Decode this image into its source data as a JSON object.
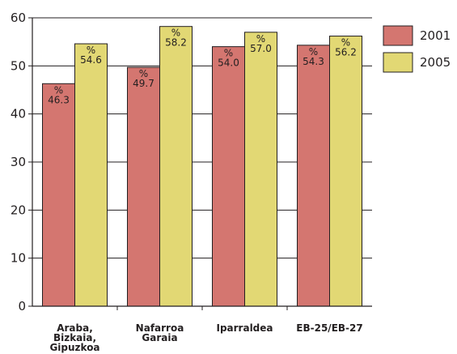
{
  "chart_data": {
    "type": "bar",
    "categories": [
      [
        "Araba,",
        "Bizkaia,",
        "Gipuzkoa"
      ],
      [
        "Nafarroa",
        "Garaia"
      ],
      [
        "Iparraldea"
      ],
      [
        "EB-25/EB-27"
      ]
    ],
    "series": [
      {
        "name": "2001",
        "values": [
          46.3,
          49.7,
          54.0,
          54.3
        ],
        "color": "#d47670"
      },
      {
        "name": "2005",
        "values": [
          54.6,
          58.2,
          57.0,
          56.2
        ],
        "color": "#e2d874"
      }
    ],
    "data_labels": [
      [
        "46.3",
        "49.7",
        "54.0",
        "54.3"
      ],
      [
        "54.6",
        "58.2",
        "57.0",
        "56.2"
      ]
    ],
    "data_label_prefix": "%",
    "yticks": [
      "0",
      "10",
      "20",
      "30",
      "40",
      "50",
      "60"
    ],
    "ylim": [
      0,
      60
    ],
    "grid": true,
    "legend_position": "top-right",
    "title": "",
    "xlabel": "",
    "ylabel": ""
  }
}
